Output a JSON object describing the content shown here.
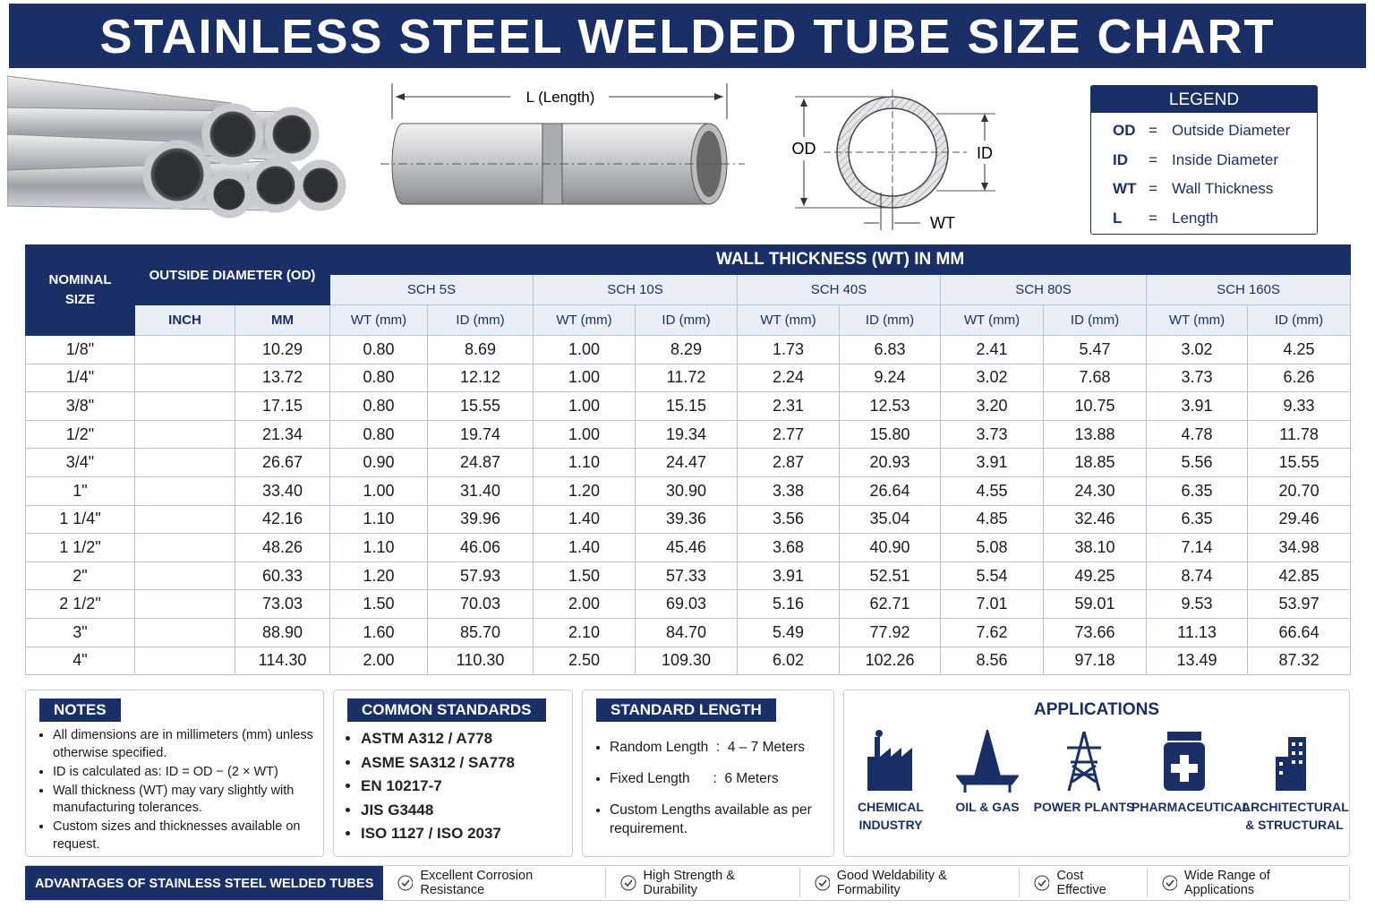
{
  "header": {
    "title": "STAINLESS STEEL WELDED TUBE SIZE CHART"
  },
  "diagram": {
    "length_label": "L (Length)",
    "od_label": "OD",
    "id_label": "ID",
    "wt_label": "WT"
  },
  "legend": {
    "title": "LEGEND",
    "items": [
      {
        "abbr": "OD",
        "eq": "=",
        "text": "Outside Diameter"
      },
      {
        "abbr": "ID",
        "eq": "=",
        "text": "Inside Diameter"
      },
      {
        "abbr": "WT",
        "eq": "=",
        "text": "Wall Thickness"
      },
      {
        "abbr": "L",
        "eq": "=",
        "text": "Length"
      }
    ]
  },
  "table": {
    "headers": {
      "nominal": "NOMINAL SIZE",
      "od": "OUTSIDE DIAMETER (OD)",
      "wt": "WALL THICKNESS (WT) IN MM",
      "schedules": [
        "SCH 5S",
        "SCH 10S",
        "SCH 40S",
        "SCH 80S",
        "SCH 160S"
      ],
      "inch": "INCH",
      "mm": "MM",
      "wt_mm": "WT (mm)",
      "id_mm": "ID (mm)"
    },
    "rows": [
      [
        "1/8\"",
        "10.29",
        "0.80",
        "8.69",
        "1.00",
        "8.29",
        "1.73",
        "6.83",
        "2.41",
        "5.47",
        "3.02",
        "4.25"
      ],
      [
        "1/4\"",
        "13.72",
        "0.80",
        "12.12",
        "1.00",
        "11.72",
        "2.24",
        "9.24",
        "3.02",
        "7.68",
        "3.73",
        "6.26"
      ],
      [
        "3/8\"",
        "17.15",
        "0.80",
        "15.55",
        "1.00",
        "15.15",
        "2.31",
        "12.53",
        "3.20",
        "10.75",
        "3.91",
        "9.33"
      ],
      [
        "1/2\"",
        "21.34",
        "0.80",
        "19.74",
        "1.00",
        "19.34",
        "2.77",
        "15.80",
        "3.73",
        "13.88",
        "4.78",
        "11.78"
      ],
      [
        "3/4\"",
        "26.67",
        "0.90",
        "24.87",
        "1.10",
        "24.47",
        "2.87",
        "20.93",
        "3.91",
        "18.85",
        "5.56",
        "15.55"
      ],
      [
        "1\"",
        "33.40",
        "1.00",
        "31.40",
        "1.20",
        "30.90",
        "3.38",
        "26.64",
        "4.55",
        "24.30",
        "6.35",
        "20.70"
      ],
      [
        "1 1/4\"",
        "42.16",
        "1.10",
        "39.96",
        "1.40",
        "39.36",
        "3.56",
        "35.04",
        "4.85",
        "32.46",
        "6.35",
        "29.46"
      ],
      [
        "1 1/2\"",
        "48.26",
        "1.10",
        "46.06",
        "1.40",
        "45.46",
        "3.68",
        "40.90",
        "5.08",
        "38.10",
        "7.14",
        "34.98"
      ],
      [
        "2\"",
        "60.33",
        "1.20",
        "57.93",
        "1.50",
        "57.33",
        "3.91",
        "52.51",
        "5.54",
        "49.25",
        "8.74",
        "42.85"
      ],
      [
        "2 1/2\"",
        "73.03",
        "1.50",
        "70.03",
        "2.00",
        "69.03",
        "5.16",
        "62.71",
        "7.01",
        "59.01",
        "9.53",
        "53.97"
      ],
      [
        "3\"",
        "88.90",
        "1.60",
        "85.70",
        "2.10",
        "84.70",
        "5.49",
        "77.92",
        "7.62",
        "73.66",
        "11.13",
        "66.64"
      ],
      [
        "4\"",
        "114.30",
        "2.00",
        "110.30",
        "2.50",
        "109.30",
        "6.02",
        "102.26",
        "8.56",
        "97.18",
        "13.49",
        "87.32"
      ]
    ]
  },
  "notes": {
    "title": "NOTES",
    "items": [
      "All dimensions are in millimeters (mm) unless otherwise specified.",
      "ID is calculated as:   ID = OD − (2 × WT)",
      "Wall thickness (WT) may vary slightly with manufacturing tolerances.",
      "Custom sizes and thicknesses available on request."
    ]
  },
  "standards": {
    "title": "COMMON STANDARDS",
    "items": [
      "ASTM A312 / A778",
      "ASME SA312 / SA778",
      "EN 10217-7",
      "JIS G3448",
      "ISO 1127 / ISO 2037"
    ]
  },
  "standard_length": {
    "title": "STANDARD LENGTH",
    "items": [
      "Random Length  :  4 – 7 Meters",
      "Fixed Length      :  6 Meters",
      "Custom Lengths available as per requirement."
    ]
  },
  "applications": {
    "title": "APPLICATIONS",
    "items": [
      "CHEMICAL INDUSTRY",
      "OIL & GAS",
      "POWER PLANTS",
      "PHARMACEUTICAL",
      "ARCHITECTURAL & STRUCTURAL"
    ]
  },
  "advantages": {
    "title": "ADVANTAGES OF STAINLESS STEEL WELDED TUBES",
    "items": [
      "Excellent Corrosion Resistance",
      "High Strength & Durability",
      "Good Weldability & Formability",
      "Cost Effective",
      "Wide Range of Applications"
    ]
  }
}
